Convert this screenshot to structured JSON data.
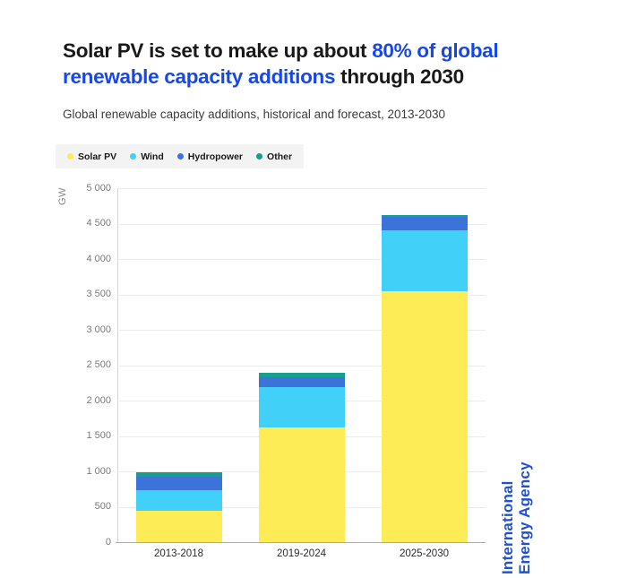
{
  "title": {
    "lines": [
      {
        "segments": [
          {
            "text": "Solar PV is set to make up about ",
            "highlight": false
          },
          {
            "text": "80% of global",
            "highlight": true
          }
        ]
      },
      {
        "segments": [
          {
            "text": "renewable capacity additions",
            "highlight": true
          },
          {
            "text": " through 2030",
            "highlight": false
          }
        ]
      }
    ],
    "text_color": "#191919",
    "highlight_color": "#1847e8"
  },
  "subtitle": "Global renewable capacity additions, historical and forecast, 2013-2030",
  "chart_data": {
    "type": "bar",
    "stacked": true,
    "title": "Solar PV is set to make up about 80% of global renewable capacity additions through 2030",
    "subtitle": "Global renewable capacity additions, historical and forecast, 2013-2030",
    "categories": [
      "2013-2018",
      "2019-2024",
      "2025-2030"
    ],
    "series": [
      {
        "name": "Solar PV",
        "color": "#fdec55",
        "values": [
          440,
          1620,
          3550
        ]
      },
      {
        "name": "Wind",
        "color": "#41d0f7",
        "values": [
          290,
          570,
          860
        ]
      },
      {
        "name": "Hydropower",
        "color": "#3b73d9",
        "values": [
          190,
          140,
          190
        ]
      },
      {
        "name": "Other",
        "color": "#14a08c",
        "values": [
          70,
          60,
          20
        ]
      }
    ],
    "totals": [
      990,
      2390,
      4620
    ],
    "xlabel": "",
    "ylabel": "GW",
    "ylim": [
      0,
      5000
    ],
    "ytick_step": 500,
    "ytick_labels": [
      "0",
      "500",
      "1 000",
      "1 500",
      "2 000",
      "2 500",
      "3 000",
      "3 500",
      "4 000",
      "4 500",
      "5 000"
    ],
    "grid": true,
    "legend_position": "top-left"
  },
  "axis_unit": "GW",
  "branding": {
    "line1": "International",
    "line2": "Energy Agency",
    "color": "#2151d3"
  }
}
